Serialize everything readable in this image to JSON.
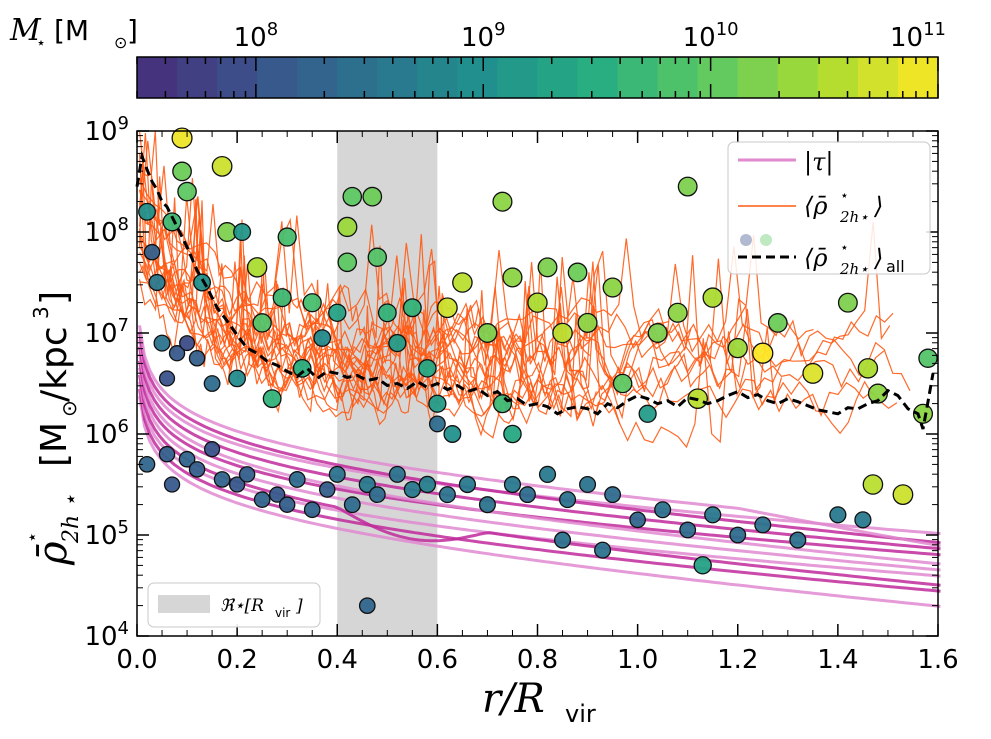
{
  "colorbar": {
    "label_symbol": "M",
    "label_sub": "⋆",
    "label_unit": "[M",
    "label_unit_sub": "⊙",
    "label_close": "]",
    "scale": "log",
    "range": [
      30000000,
      100000000000
    ],
    "tick_values": [
      100000000,
      1000000000,
      10000000000,
      100000000000
    ],
    "tick_mantissa": "10",
    "tick_exponents": [
      "8",
      "9",
      "10",
      "11"
    ],
    "colors": [
      "#472c7a",
      "#3b528b",
      "#2c728e",
      "#21908d",
      "#27ad81",
      "#5dc863",
      "#aadc32",
      "#fde725"
    ]
  },
  "chart_data": {
    "type": "scatter",
    "xlabel_main": "r/R",
    "xlabel_sub": "vir",
    "ylabel_main": "ρ̄",
    "ylabel_sub": "2h ⋆",
    "ylabel_sup": "⋆",
    "ylabel_unit_open": "[M",
    "ylabel_unit_sub": "⊙",
    "ylabel_unit": "/kpc",
    "ylabel_unit_sup": "3",
    "ylabel_unit_close": "]",
    "xlim": [
      0.0,
      1.6
    ],
    "ylim_log10": [
      4,
      9
    ],
    "x_ticks": [
      "0.0",
      "0.2",
      "0.4",
      "0.6",
      "0.8",
      "1.0",
      "1.2",
      "1.4",
      "1.6"
    ],
    "y_tick_exponents": [
      "4",
      "5",
      "6",
      "7",
      "8",
      "9"
    ],
    "y_tick_mantissa": "10",
    "shaded_band": {
      "x_range": [
        0.4,
        0.6
      ],
      "color": "#d6d6d6",
      "label": "ℜ⋆[R",
      "label_sub": "vir",
      "label_close": "]"
    },
    "legend": {
      "position": "top-right",
      "entries": [
        {
          "label": "|τ|",
          "color": "#e08ad0"
        },
        {
          "label": "⟨ρ̄",
          "label_sub": "2h⋆",
          "label_sup": "⋆",
          "label_close": "⟩",
          "color": "#ff5a14"
        },
        {
          "label": "⟨ρ̄",
          "label_sub": "2h⋆",
          "label_sup": "⋆",
          "label_close": "⟩",
          "label_tail": "all",
          "color": "#000000"
        }
      ]
    },
    "series": [
      {
        "name": "mean_all",
        "style": "dashed",
        "color": "#000000",
        "points": [
          [
            0.0,
            8.45
          ],
          [
            0.01,
            8.75
          ],
          [
            0.02,
            8.62
          ],
          [
            0.03,
            8.5
          ],
          [
            0.04,
            8.42
          ],
          [
            0.05,
            8.3
          ],
          [
            0.06,
            8.25
          ],
          [
            0.08,
            8.05
          ],
          [
            0.1,
            7.85
          ],
          [
            0.12,
            7.62
          ],
          [
            0.14,
            7.45
          ],
          [
            0.16,
            7.25
          ],
          [
            0.18,
            7.12
          ],
          [
            0.2,
            6.98
          ],
          [
            0.22,
            6.85
          ],
          [
            0.24,
            6.8
          ],
          [
            0.26,
            6.72
          ],
          [
            0.28,
            6.68
          ],
          [
            0.3,
            6.62
          ],
          [
            0.32,
            6.57
          ],
          [
            0.34,
            6.65
          ],
          [
            0.36,
            6.55
          ],
          [
            0.38,
            6.62
          ],
          [
            0.4,
            6.6
          ],
          [
            0.42,
            6.56
          ],
          [
            0.44,
            6.58
          ],
          [
            0.46,
            6.53
          ],
          [
            0.48,
            6.55
          ],
          [
            0.5,
            6.48
          ],
          [
            0.52,
            6.5
          ],
          [
            0.54,
            6.45
          ],
          [
            0.56,
            6.52
          ],
          [
            0.58,
            6.46
          ],
          [
            0.6,
            6.5
          ],
          [
            0.62,
            6.44
          ],
          [
            0.64,
            6.48
          ],
          [
            0.66,
            6.42
          ],
          [
            0.68,
            6.45
          ],
          [
            0.7,
            6.38
          ],
          [
            0.72,
            6.42
          ],
          [
            0.74,
            6.33
          ],
          [
            0.76,
            6.35
          ],
          [
            0.78,
            6.28
          ],
          [
            0.8,
            6.3
          ],
          [
            0.82,
            6.27
          ],
          [
            0.84,
            6.2
          ],
          [
            0.86,
            6.25
          ],
          [
            0.88,
            6.27
          ],
          [
            0.9,
            6.25
          ],
          [
            0.92,
            6.2
          ],
          [
            0.94,
            6.3
          ],
          [
            0.96,
            6.26
          ],
          [
            0.98,
            6.33
          ],
          [
            1.0,
            6.38
          ],
          [
            1.02,
            6.35
          ],
          [
            1.04,
            6.3
          ],
          [
            1.06,
            6.33
          ],
          [
            1.08,
            6.27
          ],
          [
            1.1,
            6.36
          ],
          [
            1.12,
            6.34
          ],
          [
            1.14,
            6.3
          ],
          [
            1.16,
            6.33
          ],
          [
            1.18,
            6.38
          ],
          [
            1.2,
            6.42
          ],
          [
            1.22,
            6.36
          ],
          [
            1.24,
            6.39
          ],
          [
            1.26,
            6.33
          ],
          [
            1.28,
            6.3
          ],
          [
            1.3,
            6.35
          ],
          [
            1.32,
            6.32
          ],
          [
            1.34,
            6.28
          ],
          [
            1.36,
            6.24
          ],
          [
            1.38,
            6.22
          ],
          [
            1.4,
            6.2
          ],
          [
            1.42,
            6.26
          ],
          [
            1.44,
            6.25
          ],
          [
            1.46,
            6.3
          ],
          [
            1.48,
            6.33
          ],
          [
            1.5,
            6.43
          ],
          [
            1.52,
            6.38
          ],
          [
            1.54,
            6.25
          ],
          [
            1.56,
            6.2
          ],
          [
            1.57,
            6.05
          ],
          [
            1.58,
            6.32
          ],
          [
            1.59,
            6.6
          ]
        ]
      }
    ],
    "scatter_points": [
      [
        0.02,
        8.2,
        9.0
      ],
      [
        0.03,
        7.8,
        8.2
      ],
      [
        0.05,
        6.9,
        8.5
      ],
      [
        0.06,
        6.55,
        8.0
      ],
      [
        0.08,
        6.8,
        8.1
      ],
      [
        0.1,
        6.9,
        7.9
      ],
      [
        0.12,
        6.75,
        8.2
      ],
      [
        0.15,
        6.5,
        8.4
      ],
      [
        0.04,
        7.5,
        8.6
      ],
      [
        0.07,
        8.1,
        9.7
      ],
      [
        0.09,
        8.6,
        10.1
      ],
      [
        0.1,
        8.4,
        10.0
      ],
      [
        0.09,
        8.93,
        10.9
      ],
      [
        0.17,
        8.65,
        10.7
      ],
      [
        0.24,
        7.65,
        10.5
      ],
      [
        0.18,
        8.0,
        10.2
      ],
      [
        0.21,
        8.0,
        9.1
      ],
      [
        0.29,
        7.35,
        9.7
      ],
      [
        0.3,
        7.95,
        9.8
      ],
      [
        0.25,
        7.1,
        9.9
      ],
      [
        0.13,
        7.5,
        9.0
      ],
      [
        0.2,
        6.55,
        8.9
      ],
      [
        0.27,
        6.35,
        9.6
      ],
      [
        0.35,
        7.3,
        9.8
      ],
      [
        0.33,
        6.65,
        9.5
      ],
      [
        0.37,
        6.95,
        8.9
      ],
      [
        0.4,
        7.2,
        9.3
      ],
      [
        0.42,
        8.05,
        10.4
      ],
      [
        0.42,
        7.7,
        10.0
      ],
      [
        0.43,
        8.35,
        10.0
      ],
      [
        0.47,
        8.35,
        10.1
      ],
      [
        0.48,
        7.75,
        9.9
      ],
      [
        0.5,
        7.2,
        9.6
      ],
      [
        0.52,
        6.9,
        9.2
      ],
      [
        0.55,
        7.25,
        9.6
      ],
      [
        0.58,
        6.65,
        9.4
      ],
      [
        0.6,
        6.3,
        9.2
      ],
      [
        0.62,
        7.25,
        10.7
      ],
      [
        0.6,
        6.1,
        8.4
      ],
      [
        0.63,
        6.0,
        9.0
      ],
      [
        0.65,
        7.5,
        10.6
      ],
      [
        0.7,
        7.0,
        10.2
      ],
      [
        0.73,
        6.3,
        9.7
      ],
      [
        0.75,
        6.0,
        9.4
      ],
      [
        0.73,
        8.3,
        10.3
      ],
      [
        0.75,
        7.55,
        10.3
      ],
      [
        0.8,
        7.3,
        10.5
      ],
      [
        0.82,
        7.65,
        10.2
      ],
      [
        0.85,
        7.0,
        10.6
      ],
      [
        0.88,
        7.6,
        10.1
      ],
      [
        0.9,
        7.1,
        10.3
      ],
      [
        0.95,
        7.45,
        10.3
      ],
      [
        0.97,
        6.5,
        10.0
      ],
      [
        1.02,
        6.2,
        9.2
      ],
      [
        1.04,
        7.0,
        10.2
      ],
      [
        1.08,
        7.2,
        10.3
      ],
      [
        1.1,
        8.45,
        10.2
      ],
      [
        1.12,
        6.35,
        10.6
      ],
      [
        1.15,
        7.35,
        10.5
      ],
      [
        1.2,
        6.85,
        10.4
      ],
      [
        1.25,
        6.8,
        11.0
      ],
      [
        1.28,
        7.1,
        10.1
      ],
      [
        1.35,
        6.6,
        10.8
      ],
      [
        1.42,
        7.3,
        10.2
      ],
      [
        1.46,
        6.65,
        10.5
      ],
      [
        1.48,
        6.4,
        10.3
      ],
      [
        1.53,
        5.4,
        10.7
      ],
      [
        1.57,
        6.2,
        10.3
      ],
      [
        1.58,
        6.75,
        9.9
      ],
      [
        0.02,
        5.7,
        8.3
      ],
      [
        0.06,
        5.8,
        8.2
      ],
      [
        0.07,
        5.5,
        8.1
      ],
      [
        0.1,
        5.75,
        8.3
      ],
      [
        0.12,
        5.65,
        8.2
      ],
      [
        0.15,
        5.85,
        8.0
      ],
      [
        0.17,
        5.55,
        8.3
      ],
      [
        0.2,
        5.5,
        8.1
      ],
      [
        0.22,
        5.6,
        8.2
      ],
      [
        0.25,
        5.35,
        8.3
      ],
      [
        0.28,
        5.4,
        8.1
      ],
      [
        0.3,
        5.3,
        8.2
      ],
      [
        0.32,
        5.55,
        8.4
      ],
      [
        0.35,
        5.25,
        8.3
      ],
      [
        0.38,
        5.45,
        8.2
      ],
      [
        0.4,
        5.6,
        8.5
      ],
      [
        0.43,
        5.3,
        8.4
      ],
      [
        0.46,
        5.5,
        8.6
      ],
      [
        0.46,
        4.3,
        8.3
      ],
      [
        0.48,
        5.4,
        8.4
      ],
      [
        0.52,
        5.6,
        8.5
      ],
      [
        0.55,
        5.45,
        8.6
      ],
      [
        0.58,
        5.5,
        8.7
      ],
      [
        0.62,
        5.4,
        8.5
      ],
      [
        0.66,
        5.5,
        8.6
      ],
      [
        0.7,
        5.3,
        8.5
      ],
      [
        0.75,
        5.5,
        8.6
      ],
      [
        0.78,
        5.4,
        8.4
      ],
      [
        0.82,
        5.6,
        8.6
      ],
      [
        0.86,
        5.35,
        8.5
      ],
      [
        0.9,
        5.5,
        8.5
      ],
      [
        0.95,
        5.4,
        8.4
      ],
      [
        1.0,
        5.15,
        8.3
      ],
      [
        1.05,
        5.25,
        8.5
      ],
      [
        1.1,
        5.05,
        8.4
      ],
      [
        1.15,
        5.2,
        8.6
      ],
      [
        1.2,
        5.0,
        8.4
      ],
      [
        1.25,
        5.1,
        8.5
      ],
      [
        1.32,
        4.95,
        8.5
      ],
      [
        1.4,
        5.2,
        8.6
      ],
      [
        1.45,
        5.15,
        8.6
      ],
      [
        1.47,
        5.5,
        10.6
      ],
      [
        1.13,
        4.7,
        9.3
      ],
      [
        0.93,
        4.85,
        8.5
      ],
      [
        0.85,
        4.95,
        8.5
      ]
    ]
  }
}
